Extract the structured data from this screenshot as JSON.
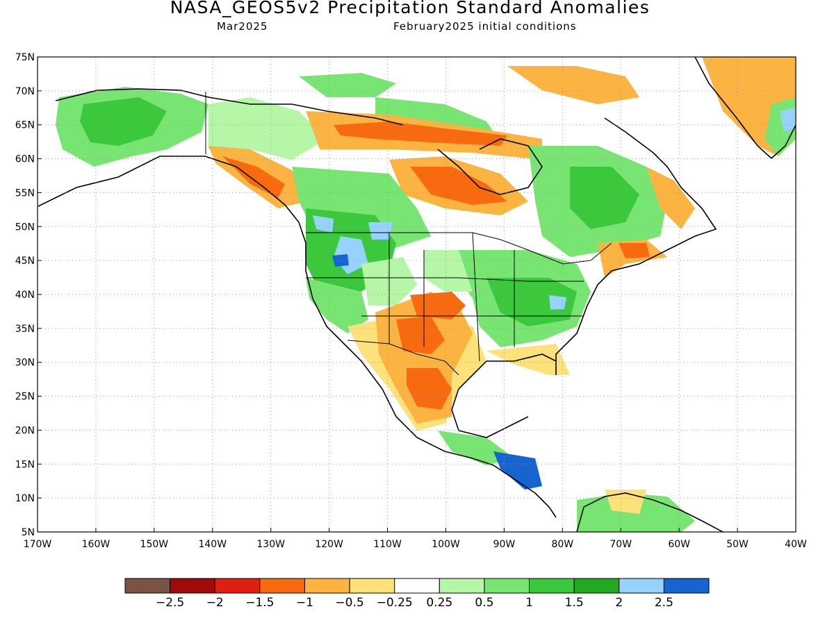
{
  "header": {
    "title": "NASA_GEOS5v2 Precipitation Standard Anomalies",
    "month": "Mar2025",
    "init": "February2025 initial conditions"
  },
  "axes": {
    "lat_labels": [
      "75N",
      "70N",
      "65N",
      "60N",
      "55N",
      "50N",
      "45N",
      "40N",
      "35N",
      "30N",
      "25N",
      "20N",
      "15N",
      "10N",
      "5N"
    ],
    "lon_labels": [
      "170W",
      "160W",
      "150W",
      "140W",
      "130W",
      "120W",
      "110W",
      "100W",
      "90W",
      "80W",
      "70W",
      "60W",
      "50W",
      "40W"
    ],
    "lat_range": [
      5,
      75
    ],
    "lon_range": [
      -170,
      -40
    ],
    "grid": "dotted"
  },
  "colorbar": {
    "colors": [
      "#7a5345",
      "#a00a0a",
      "#dd2010",
      "#f86a10",
      "#fbb442",
      "#fde17a",
      "#ffffff",
      "#b5f7a7",
      "#78e472",
      "#3cc83c",
      "#22a922",
      "#96d2f9",
      "#1664cf"
    ],
    "labels": [
      "−2.5",
      "−2",
      "−1.5",
      "−1",
      "−0.5",
      "−0.25",
      "0.25",
      "0.5",
      "1",
      "1.5",
      "2",
      "2.5"
    ]
  },
  "colors": {
    "dry_strong": "#f86a10",
    "dry": "#fbb442",
    "dry_light": "#fde17a",
    "wet_light": "#b5f7a7",
    "wet": "#78e472",
    "wet_strong": "#3cc83c",
    "very_wet": "#96d2f9",
    "extreme_wet": "#1664cf"
  }
}
